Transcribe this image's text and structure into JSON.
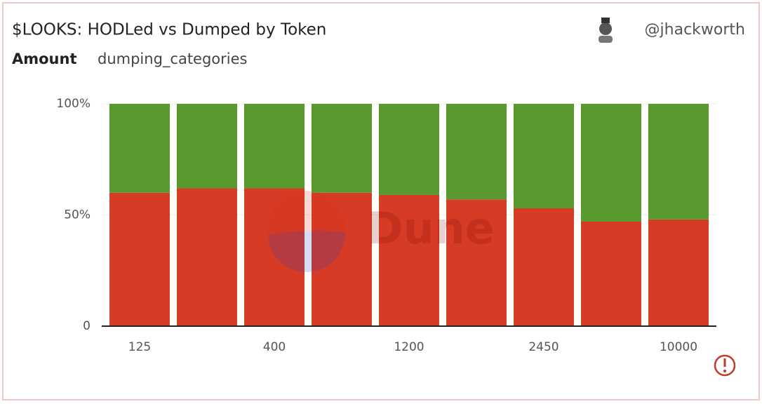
{
  "chart_data": {
    "type": "stacked_bar_100",
    "title": "$LOOKS: HODLed vs Dumped by Token",
    "tabs": [
      "Amount",
      "dumping_categories"
    ],
    "author": "@jhackworth",
    "watermark": "Dune",
    "categories": [
      "125",
      null,
      "400",
      null,
      "1200",
      null,
      "2450",
      null,
      "10000"
    ],
    "series": [
      {
        "color": "#d63b25",
        "values": [
          60,
          62,
          62,
          60,
          59,
          57,
          53,
          47,
          48
        ]
      },
      {
        "color": "#589a2e",
        "values": [
          40,
          38,
          38,
          40,
          41,
          43,
          47,
          53,
          52
        ]
      }
    ],
    "ylim": [
      0,
      100
    ],
    "yticks": [
      0,
      {
        "value": 50,
        "label": "50%"
      },
      {
        "value": 100,
        "label": "100%"
      }
    ],
    "grid": true
  }
}
